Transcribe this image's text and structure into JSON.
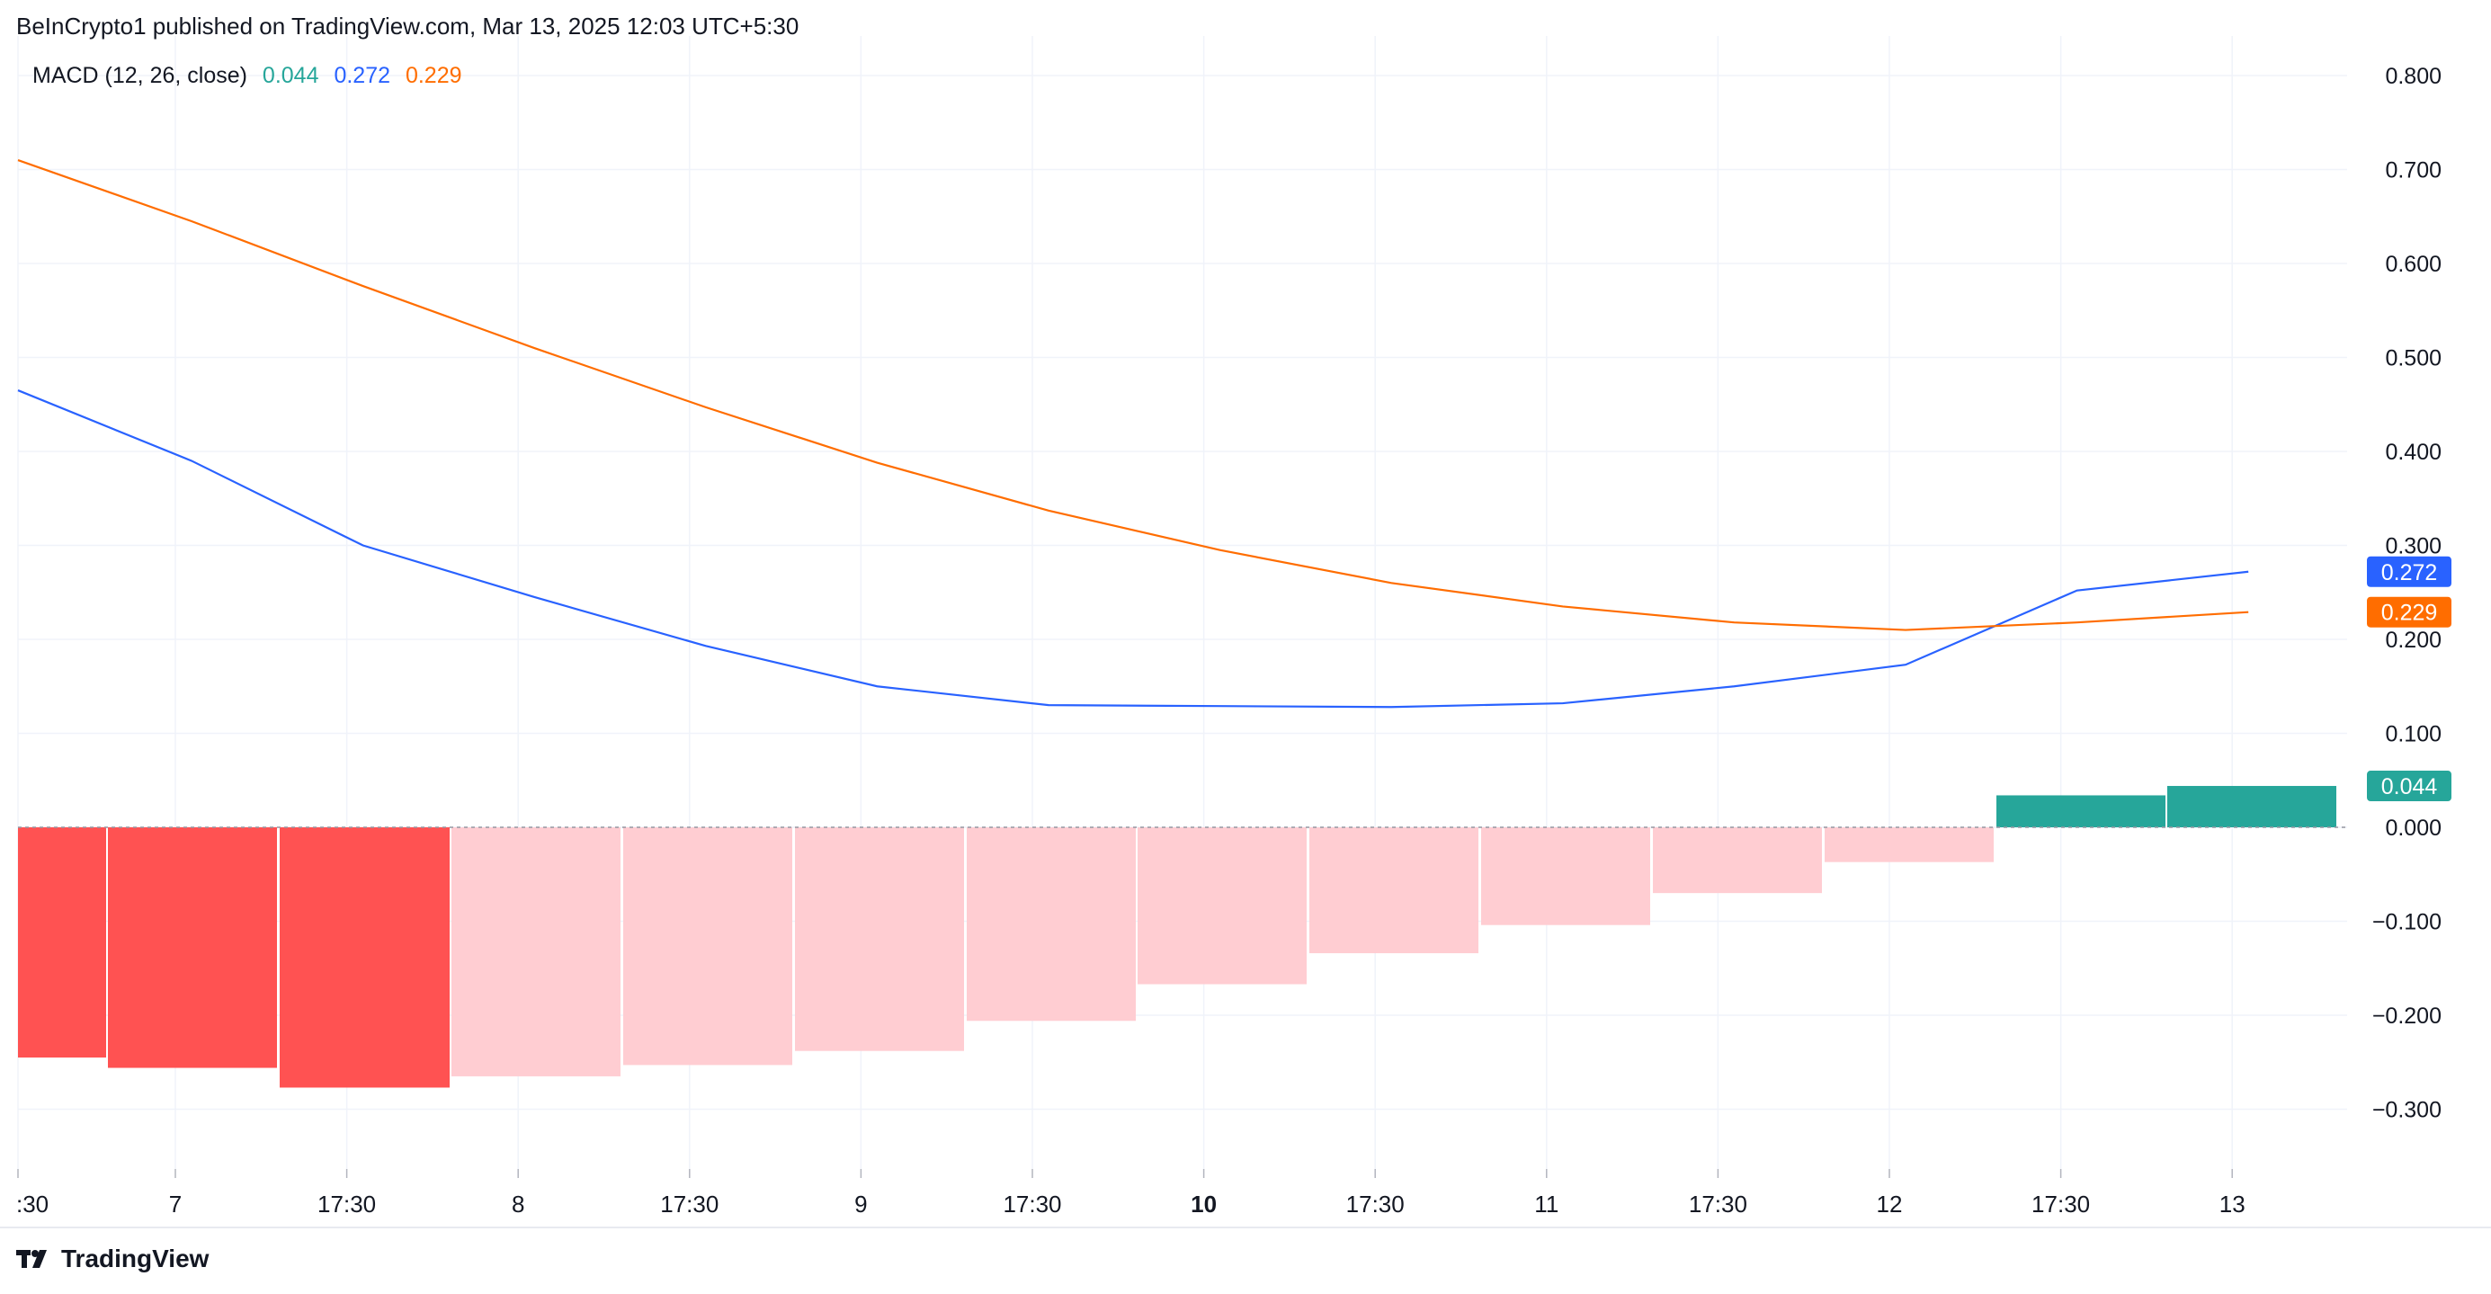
{
  "header": {
    "publish_line": "BeInCrypto1 published on TradingView.com, Mar 13, 2025 12:03 UTC+5:30"
  },
  "legend": {
    "indicator": "MACD (12, 26, close)",
    "histogram_value": "0.044",
    "macd_value": "0.272",
    "signal_value": "0.229"
  },
  "footer": {
    "brand": "TradingView"
  },
  "colors": {
    "macd": "#2962ff",
    "signal": "#ff6d00",
    "hist_neg_strong": "#ff5252",
    "hist_neg_weak": "#ffcdd2",
    "hist_pos": "#26a69a",
    "grid": "#f0f3fa",
    "axis_text": "#131722"
  },
  "chart_data": {
    "type": "line",
    "title": "",
    "xlabel": "",
    "ylabel": "",
    "ylim": [
      -0.36,
      0.8
    ],
    "grid": true,
    "x_tick_labels": [
      ":30",
      "7",
      "17:30",
      "8",
      "17:30",
      "9",
      "17:30",
      "10",
      "17:30",
      "11",
      "17:30",
      "12",
      "17:30",
      "13"
    ],
    "x_tick_bold": [
      false,
      false,
      false,
      false,
      false,
      false,
      false,
      true,
      false,
      false,
      false,
      false,
      false,
      false
    ],
    "y_ticks": [
      0.8,
      0.7,
      0.6,
      0.5,
      0.4,
      0.3,
      0.2,
      0.1,
      0.0,
      -0.1,
      -0.2,
      -0.3
    ],
    "y_tick_labels": [
      "0.800",
      "0.700",
      "0.600",
      "0.500",
      "0.400",
      "0.300",
      "0.200",
      "0.100",
      "0.000",
      "−0.100",
      "−0.200",
      "−0.300"
    ],
    "line_x": [
      -0.05,
      1,
      2,
      3,
      4,
      5,
      6,
      7,
      8,
      9,
      10,
      11,
      12,
      13
    ],
    "series": [
      {
        "values": [
          0.465,
          0.39,
          0.3,
          0.245,
          0.193,
          0.15,
          0.13,
          0.129,
          0.128,
          0.132,
          0.15,
          0.173,
          0.252,
          0.272
        ]
      },
      {
        "values": [
          0.71,
          0.645,
          0.576,
          0.51,
          0.447,
          0.388,
          0.337,
          0.295,
          0.26,
          0.235,
          0.218,
          0.21,
          0.218,
          0.229
        ]
      }
    ],
    "histogram": {
      "x": [
        0,
        1,
        2,
        3,
        4,
        5,
        6,
        7,
        8,
        9,
        10,
        11,
        12,
        13
      ],
      "values": [
        -0.245,
        -0.256,
        -0.277,
        -0.265,
        -0.253,
        -0.238,
        -0.206,
        -0.167,
        -0.134,
        -0.104,
        -0.07,
        -0.037,
        0.034,
        0.044
      ],
      "kind": [
        "neg_strong",
        "neg_strong",
        "neg_strong",
        "neg_weak",
        "neg_weak",
        "neg_weak",
        "neg_weak",
        "neg_weak",
        "neg_weak",
        "neg_weak",
        "neg_weak",
        "neg_weak",
        "pos",
        "pos"
      ]
    },
    "price_labels": [
      {
        "text": "0.272",
        "value": 0.272,
        "color_key": "macd"
      },
      {
        "text": "0.229",
        "value": 0.229,
        "color_key": "signal"
      },
      {
        "text": "0.044",
        "value": 0.044,
        "color_key": "hist_pos"
      }
    ]
  }
}
